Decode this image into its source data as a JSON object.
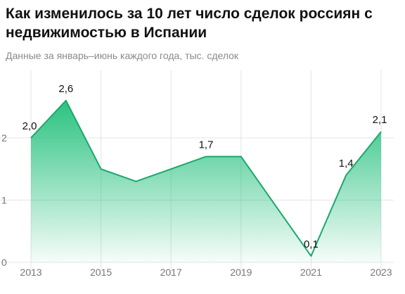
{
  "title": "Как изменилось за 10 лет число сделок россиян с недвижимостью в Испании",
  "subtitle": "Данные за январь–июнь каждого года, тыс. сделок",
  "colors": {
    "line": "#1aa86a",
    "fill_top": "#1fbf7a",
    "grid": "#e4e4e4",
    "axis_text": "#777777",
    "label_text": "#111111"
  },
  "chart_data": {
    "type": "area",
    "title": "Как изменилось за 10 лет число сделок россиян с недвижимостью в Испании",
    "subtitle": "Данные за январь–июнь каждого года, тыс. сделок",
    "x": [
      2013,
      2014,
      2015,
      2016,
      2017,
      2018,
      2019,
      2020,
      2021,
      2022,
      2023
    ],
    "values": [
      2.0,
      2.6,
      1.5,
      1.3,
      1.5,
      1.7,
      1.7,
      0.9,
      0.1,
      1.4,
      2.1
    ],
    "x_tick_labels": [
      "2013",
      "2015",
      "2017",
      "2019",
      "2021",
      "2023"
    ],
    "y_ticks": [
      0,
      1,
      2
    ],
    "y_tick_labels": [
      "0",
      "1",
      "2"
    ],
    "ylim": [
      0,
      2.6
    ],
    "grid": true,
    "data_labels": [
      {
        "x": 2013,
        "text": "2,0"
      },
      {
        "x": 2014,
        "text": "2,6"
      },
      {
        "x": 2018,
        "text": "1,7"
      },
      {
        "x": 2021,
        "text": "0,1"
      },
      {
        "x": 2022,
        "text": "1,4"
      },
      {
        "x": 2023,
        "text": "2,1"
      }
    ]
  }
}
